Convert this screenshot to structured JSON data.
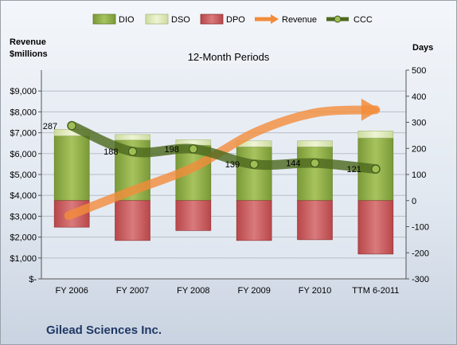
{
  "company_name": "Gilead Sciences Inc.",
  "colors": {
    "dio": "#7a9a37",
    "dso": "#cddca0",
    "dpo": "#b8474a",
    "revenue": "#f28c3b",
    "ccc": "#4e6a20"
  },
  "chart_data": {
    "type": "bar",
    "subtitle": "12-Month Periods",
    "left_axis_title": [
      "Revenue",
      "$millions"
    ],
    "right_axis_title": "Days",
    "categories": [
      "FY 2006",
      "FY 2007",
      "FY 2008",
      "FY 2009",
      "FY 2010",
      "TTM 6-2011"
    ],
    "left_axis": {
      "ylim": [
        0,
        10000
      ],
      "ticks": [
        {
          "value": 0,
          "label": "$-"
        },
        {
          "value": 1000,
          "label": "$1,000"
        },
        {
          "value": 2000,
          "label": "$2,000"
        },
        {
          "value": 3000,
          "label": "$3,000"
        },
        {
          "value": 4000,
          "label": "$4,000"
        },
        {
          "value": 5000,
          "label": "$5,000"
        },
        {
          "value": 6000,
          "label": "$6,000"
        },
        {
          "value": 7000,
          "label": "$7,000"
        },
        {
          "value": 8000,
          "label": "$8,000"
        },
        {
          "value": 9000,
          "label": "$9,000"
        }
      ]
    },
    "right_axis": {
      "ylim": [
        -300,
        500
      ],
      "ticks": [
        -300,
        -200,
        -100,
        0,
        100,
        200,
        300,
        400,
        500
      ]
    },
    "grid": "horizontal",
    "legend_position": "top",
    "series": [
      {
        "name": "DIO",
        "kind": "stacked-bar",
        "axis": "days",
        "values": [
          248,
          232,
          212,
          206,
          206,
          240
        ]
      },
      {
        "name": "DSO",
        "kind": "stacked-bar",
        "axis": "days",
        "values": [
          25,
          21,
          21,
          23,
          23,
          27
        ]
      },
      {
        "name": "DPO",
        "kind": "negative-bar",
        "axis": "days",
        "values": [
          -102,
          -153,
          -115,
          -153,
          -150,
          -205
        ]
      },
      {
        "name": "Revenue",
        "kind": "arrow-line",
        "axis": "revenue",
        "values": [
          3030,
          4230,
          5340,
          7000,
          7950,
          8100
        ]
      },
      {
        "name": "CCC",
        "kind": "line",
        "axis": "days",
        "values": [
          287,
          188,
          198,
          139,
          144,
          121
        ]
      }
    ]
  }
}
